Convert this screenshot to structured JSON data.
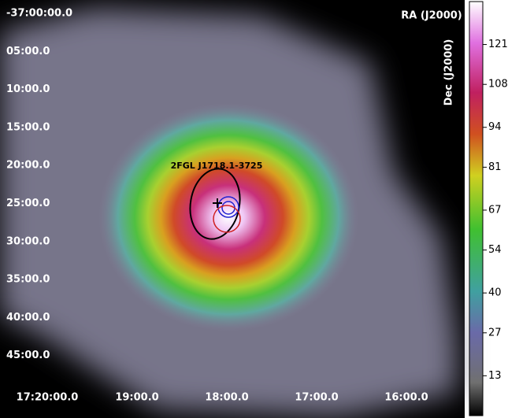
{
  "chart_data": {
    "type": "heatmap",
    "x_label": "RA (J2000)",
    "y_label": "Dec (J2000)",
    "xtick_labels": [
      "17:20:00.0",
      "19:00.0",
      "18:00.0",
      "17:00.0",
      "16:00.0"
    ],
    "ytick_labels": [
      "-37:00:00.0",
      "05:00.0",
      "10:00.0",
      "15:00.0",
      "20:00.0",
      "25:00.0",
      "30:00.0",
      "35:00.0",
      "40:00.0",
      "45:00.0"
    ],
    "annotation": "2FGL J1718.1-3725",
    "colorbar": {
      "lim": [
        0,
        135
      ],
      "ticks": [
        13,
        27,
        40,
        54,
        67,
        81,
        94,
        108,
        121
      ]
    }
  }
}
